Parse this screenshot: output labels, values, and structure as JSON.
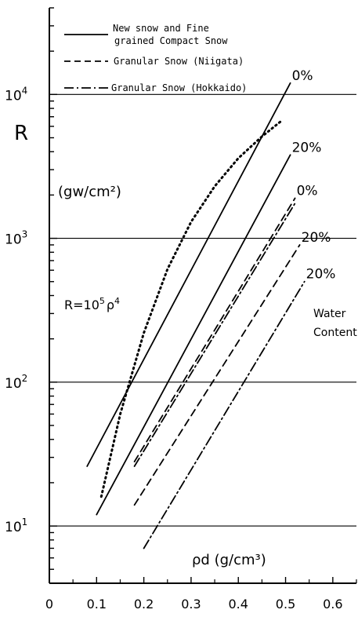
{
  "chart_data": {
    "type": "line",
    "title": "",
    "xlabel": "ρd (g/cm³)",
    "ylabel": "R",
    "ylabel_unit": "(gw/cm²)",
    "x_scale": "linear",
    "y_scale": "log",
    "xlim": [
      0,
      0.65
    ],
    "ylim": [
      4,
      40000
    ],
    "x_ticks": [
      "0",
      "0.1",
      "0.2",
      "0.3",
      "0.4",
      "0.5",
      "0.6"
    ],
    "y_ticks": [
      {
        "base": "10",
        "exp": "1"
      },
      {
        "base": "10",
        "exp": "2"
      },
      {
        "base": "10",
        "exp": "3"
      },
      {
        "base": "10",
        "exp": "4"
      }
    ],
    "grid": "horizontal at decades",
    "legend": {
      "placement": "top",
      "entries": [
        {
          "line1": "New snow and Fine",
          "line2": "grained Compact Snow",
          "style": "solid"
        },
        {
          "line1": "Granular Snow (Niigata)",
          "style": "dashed"
        },
        {
          "line1": "Granular Snow (Hokkaido)",
          "style": "dashdot"
        }
      ]
    },
    "formula": {
      "text": "R=10",
      "exp1": "5",
      "rho": "ρ",
      "exp2": "4"
    },
    "annotations": {
      "water_content_label": [
        "Water",
        "Content"
      ]
    },
    "series": [
      {
        "style": "solid",
        "label": "0%",
        "x": [
          0.08,
          0.51
        ],
        "y": [
          26,
          12000
        ]
      },
      {
        "style": "solid",
        "label": "20%",
        "x": [
          0.1,
          0.51
        ],
        "y": [
          12,
          3800
        ]
      },
      {
        "style": "dotted",
        "x": [
          0.11,
          0.15,
          0.2,
          0.25,
          0.3,
          0.35,
          0.4,
          0.45,
          0.49
        ],
        "y": [
          16,
          60,
          220,
          610,
          1300,
          2300,
          3600,
          5100,
          6500
        ]
      },
      {
        "style": "dashed",
        "label": "0%",
        "x": [
          0.18,
          0.52
        ],
        "y": [
          28,
          1900
        ]
      },
      {
        "style": "dashdot",
        "x": [
          0.18,
          0.52
        ],
        "y": [
          26,
          1750
        ]
      },
      {
        "style": "dashed",
        "label": "20%",
        "x": [
          0.18,
          0.53
        ],
        "y": [
          14,
          900
        ]
      },
      {
        "style": "dashdot",
        "label": "20%",
        "x": [
          0.2,
          0.54
        ],
        "y": [
          7,
          500
        ]
      }
    ]
  }
}
